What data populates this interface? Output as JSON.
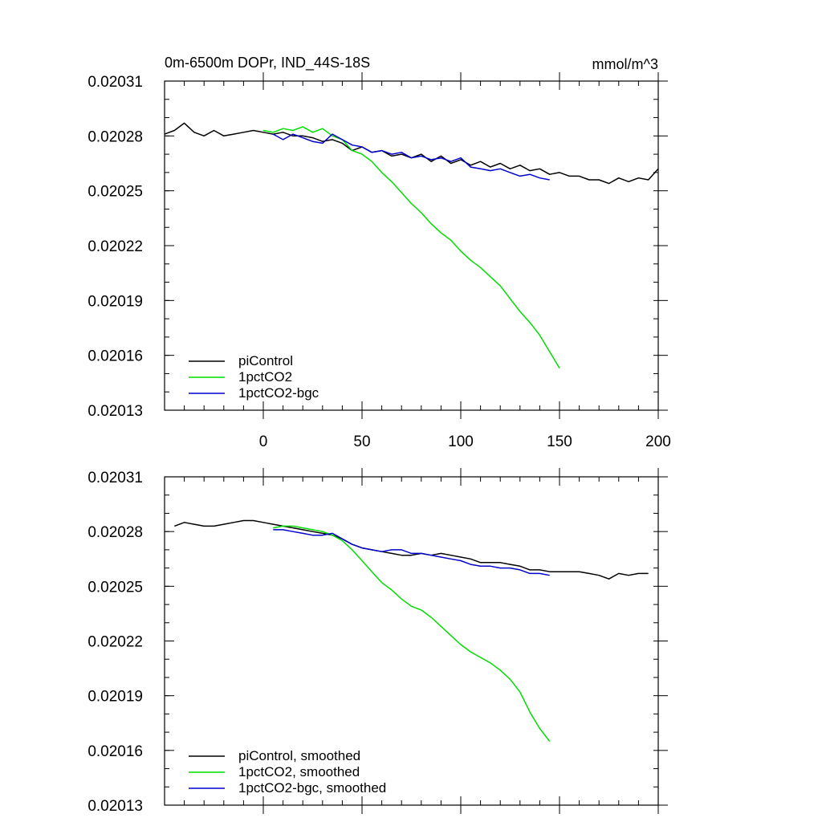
{
  "figure": {
    "title": "0m-6500m DOPr, IND_44S-18S",
    "units": "mmol/m^3"
  },
  "chart_data": [
    {
      "type": "line",
      "title": "0m-6500m DOPr, IND_44S-18S",
      "units": "mmol/m^3",
      "xlim": [
        -50,
        200
      ],
      "ylim": [
        0.02013,
        0.02031
      ],
      "xticks": [
        "0",
        "50",
        "100",
        "150",
        "200"
      ],
      "yticks": [
        "0.02013",
        "0.02016",
        "0.02019",
        "0.02022",
        "0.02025",
        "0.02028",
        "0.02031"
      ],
      "xtick_labels_visible": true,
      "grid": false,
      "legend_position": "bottom-left",
      "series": [
        {
          "name": "piControl",
          "color": "#000000",
          "x": [
            -50,
            -45,
            -40,
            -35,
            -30,
            -25,
            -20,
            -15,
            -10,
            -5,
            0,
            5,
            10,
            15,
            20,
            25,
            30,
            35,
            40,
            45,
            50,
            55,
            60,
            65,
            70,
            75,
            80,
            85,
            90,
            95,
            100,
            105,
            110,
            115,
            120,
            125,
            130,
            135,
            140,
            145,
            150,
            155,
            160,
            165,
            170,
            175,
            180,
            185,
            190,
            195,
            200
          ],
          "y": [
            0.020281,
            0.020283,
            0.020287,
            0.020282,
            0.02028,
            0.020283,
            0.02028,
            0.020281,
            0.020282,
            0.020283,
            0.020282,
            0.020281,
            0.020282,
            0.02028,
            0.02028,
            0.020279,
            0.020277,
            0.020278,
            0.020276,
            0.020272,
            0.020274,
            0.020271,
            0.020272,
            0.020269,
            0.02027,
            0.020268,
            0.02027,
            0.020266,
            0.020269,
            0.020265,
            0.020267,
            0.020264,
            0.020266,
            0.020263,
            0.020265,
            0.020262,
            0.020264,
            0.020261,
            0.020262,
            0.020259,
            0.02026,
            0.020258,
            0.020258,
            0.020256,
            0.020256,
            0.020254,
            0.020257,
            0.020255,
            0.020257,
            0.020256,
            0.020262
          ]
        },
        {
          "name": "1pctCO2",
          "color": "#00dd00",
          "x": [
            0,
            5,
            10,
            15,
            20,
            25,
            30,
            35,
            40,
            45,
            50,
            55,
            60,
            65,
            70,
            75,
            80,
            85,
            90,
            95,
            100,
            105,
            110,
            115,
            120,
            125,
            130,
            135,
            140,
            145,
            150
          ],
          "y": [
            0.020283,
            0.020282,
            0.020284,
            0.020283,
            0.020285,
            0.020282,
            0.020284,
            0.02028,
            0.020278,
            0.020272,
            0.02027,
            0.020266,
            0.02026,
            0.020255,
            0.020249,
            0.020243,
            0.020238,
            0.020232,
            0.020227,
            0.020223,
            0.020217,
            0.020212,
            0.020208,
            0.020203,
            0.020198,
            0.020191,
            0.020184,
            0.020178,
            0.020171,
            0.020162,
            0.020153
          ]
        },
        {
          "name": "1pctCO2-bgc",
          "color": "#0000cc",
          "x": [
            5,
            10,
            15,
            20,
            25,
            30,
            35,
            40,
            45,
            50,
            55,
            60,
            65,
            70,
            75,
            80,
            85,
            90,
            95,
            100,
            105,
            110,
            115,
            120,
            125,
            130,
            135,
            140,
            145
          ],
          "y": [
            0.020281,
            0.020278,
            0.020281,
            0.020279,
            0.020277,
            0.020276,
            0.020281,
            0.020278,
            0.020275,
            0.020274,
            0.020271,
            0.020272,
            0.02027,
            0.020271,
            0.020268,
            0.020269,
            0.020267,
            0.020268,
            0.020266,
            0.020268,
            0.020263,
            0.020262,
            0.020261,
            0.020262,
            0.02026,
            0.020258,
            0.020259,
            0.020257,
            0.020256
          ]
        }
      ]
    },
    {
      "type": "line",
      "xlim": [
        -50,
        200
      ],
      "ylim": [
        0.02013,
        0.02031
      ],
      "yticks": [
        "0.02013",
        "0.02016",
        "0.02019",
        "0.02022",
        "0.02025",
        "0.02028",
        "0.02031"
      ],
      "xtick_labels_visible": false,
      "grid": false,
      "legend_position": "bottom-left",
      "series": [
        {
          "name": "piControl, smoothed",
          "color": "#000000",
          "x": [
            -45,
            -40,
            -35,
            -30,
            -25,
            -20,
            -15,
            -10,
            -5,
            0,
            5,
            10,
            15,
            20,
            25,
            30,
            35,
            40,
            45,
            50,
            55,
            60,
            65,
            70,
            75,
            80,
            85,
            90,
            95,
            100,
            105,
            110,
            115,
            120,
            125,
            130,
            135,
            140,
            145,
            150,
            155,
            160,
            165,
            170,
            175,
            180,
            185,
            190,
            195
          ],
          "y": [
            0.020283,
            0.020285,
            0.020284,
            0.020283,
            0.020283,
            0.020284,
            0.020285,
            0.020286,
            0.020286,
            0.020285,
            0.020284,
            0.020283,
            0.020282,
            0.020281,
            0.02028,
            0.020279,
            0.020278,
            0.020276,
            0.020273,
            0.020271,
            0.02027,
            0.020269,
            0.020268,
            0.020267,
            0.020267,
            0.020268,
            0.020267,
            0.020268,
            0.020267,
            0.020266,
            0.020265,
            0.020263,
            0.020263,
            0.020263,
            0.020262,
            0.020261,
            0.020259,
            0.020259,
            0.020258,
            0.020258,
            0.020258,
            0.020258,
            0.020257,
            0.020256,
            0.020254,
            0.020257,
            0.020256,
            0.020257,
            0.020257
          ]
        },
        {
          "name": "1pctCO2, smoothed",
          "color": "#00dd00",
          "x": [
            5,
            10,
            15,
            20,
            25,
            30,
            35,
            40,
            45,
            50,
            55,
            60,
            65,
            70,
            75,
            80,
            85,
            90,
            95,
            100,
            105,
            110,
            115,
            120,
            125,
            130,
            135,
            140,
            145
          ],
          "y": [
            0.020282,
            0.020283,
            0.020283,
            0.020282,
            0.020281,
            0.02028,
            0.020278,
            0.020275,
            0.02027,
            0.020264,
            0.020258,
            0.020252,
            0.020248,
            0.020243,
            0.020239,
            0.020237,
            0.020233,
            0.020228,
            0.020223,
            0.020218,
            0.020214,
            0.020211,
            0.020208,
            0.020204,
            0.020199,
            0.020192,
            0.020181,
            0.020172,
            0.020165
          ]
        },
        {
          "name": "1pctCO2-bgc, smoothed",
          "color": "#0000cc",
          "x": [
            5,
            10,
            15,
            20,
            25,
            30,
            35,
            40,
            45,
            50,
            55,
            60,
            65,
            70,
            75,
            80,
            85,
            90,
            95,
            100,
            105,
            110,
            115,
            120,
            125,
            130,
            135,
            140,
            145
          ],
          "y": [
            0.020281,
            0.020281,
            0.02028,
            0.020279,
            0.020278,
            0.020278,
            0.020279,
            0.020276,
            0.020273,
            0.020271,
            0.02027,
            0.020269,
            0.02027,
            0.02027,
            0.020268,
            0.020268,
            0.020267,
            0.020266,
            0.020265,
            0.020264,
            0.020262,
            0.020261,
            0.020261,
            0.02026,
            0.02026,
            0.020259,
            0.020257,
            0.020257,
            0.020256
          ]
        }
      ]
    }
  ]
}
